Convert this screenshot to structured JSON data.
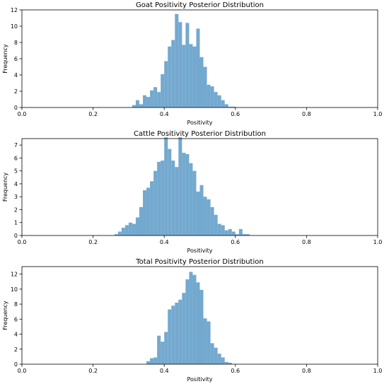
{
  "bar_color": "#74a9cf",
  "chart_data": [
    {
      "type": "bar",
      "title": "Goat Positivity Posterior Distribution",
      "xlabel": "Positivity",
      "ylabel": "Frequency",
      "xlim": [
        0.0,
        1.0
      ],
      "ylim": [
        0,
        12
      ],
      "xticks": [
        "0.0",
        "0.2",
        "0.4",
        "0.6",
        "0.8",
        "1.0"
      ],
      "yticks": [
        "0",
        "2",
        "4",
        "6",
        "8",
        "10",
        "12"
      ],
      "bin_width": 0.01,
      "bins": [
        {
          "x": 0.315,
          "y": 0.3
        },
        {
          "x": 0.325,
          "y": 0.9
        },
        {
          "x": 0.335,
          "y": 0.4
        },
        {
          "x": 0.345,
          "y": 1.5
        },
        {
          "x": 0.355,
          "y": 1.3
        },
        {
          "x": 0.365,
          "y": 2.1
        },
        {
          "x": 0.375,
          "y": 2.5
        },
        {
          "x": 0.385,
          "y": 1.9
        },
        {
          "x": 0.395,
          "y": 4.1
        },
        {
          "x": 0.405,
          "y": 5.7
        },
        {
          "x": 0.415,
          "y": 7.5
        },
        {
          "x": 0.425,
          "y": 8.3
        },
        {
          "x": 0.435,
          "y": 11.5
        },
        {
          "x": 0.445,
          "y": 10.5
        },
        {
          "x": 0.455,
          "y": 7.7
        },
        {
          "x": 0.465,
          "y": 10.4
        },
        {
          "x": 0.475,
          "y": 7.8
        },
        {
          "x": 0.485,
          "y": 7.5
        },
        {
          "x": 0.495,
          "y": 9.7
        },
        {
          "x": 0.505,
          "y": 6.2
        },
        {
          "x": 0.515,
          "y": 5.0
        },
        {
          "x": 0.525,
          "y": 2.8
        },
        {
          "x": 0.535,
          "y": 2.6
        },
        {
          "x": 0.545,
          "y": 1.9
        },
        {
          "x": 0.555,
          "y": 1.5
        },
        {
          "x": 0.565,
          "y": 0.9
        },
        {
          "x": 0.575,
          "y": 0.4
        },
        {
          "x": 0.585,
          "y": 0.1
        },
        {
          "x": 0.595,
          "y": 0.1
        }
      ]
    },
    {
      "type": "bar",
      "title": "Cattle Positivity Posterior Distribution",
      "xlabel": "Positivity",
      "ylabel": "Frequency",
      "xlim": [
        0.0,
        1.0
      ],
      "ylim": [
        0,
        7.5
      ],
      "xticks": [
        "0.0",
        "0.2",
        "0.4",
        "0.6",
        "0.8",
        "1.0"
      ],
      "yticks": [
        "0",
        "1",
        "2",
        "3",
        "4",
        "5",
        "6",
        "7"
      ],
      "bin_width": 0.01,
      "bins": [
        {
          "x": 0.265,
          "y": 0.1
        },
        {
          "x": 0.275,
          "y": 0.3
        },
        {
          "x": 0.285,
          "y": 0.6
        },
        {
          "x": 0.295,
          "y": 0.8
        },
        {
          "x": 0.305,
          "y": 1.0
        },
        {
          "x": 0.315,
          "y": 0.9
        },
        {
          "x": 0.325,
          "y": 1.4
        },
        {
          "x": 0.335,
          "y": 2.2
        },
        {
          "x": 0.345,
          "y": 3.5
        },
        {
          "x": 0.355,
          "y": 3.7
        },
        {
          "x": 0.365,
          "y": 4.2
        },
        {
          "x": 0.375,
          "y": 5.0
        },
        {
          "x": 0.385,
          "y": 5.7
        },
        {
          "x": 0.395,
          "y": 5.8
        },
        {
          "x": 0.405,
          "y": 7.6
        },
        {
          "x": 0.415,
          "y": 6.7
        },
        {
          "x": 0.425,
          "y": 5.8
        },
        {
          "x": 0.435,
          "y": 5.3
        },
        {
          "x": 0.445,
          "y": 7.6
        },
        {
          "x": 0.455,
          "y": 6.4
        },
        {
          "x": 0.465,
          "y": 6.3
        },
        {
          "x": 0.475,
          "y": 5.6
        },
        {
          "x": 0.485,
          "y": 5.0
        },
        {
          "x": 0.495,
          "y": 3.4
        },
        {
          "x": 0.505,
          "y": 3.9
        },
        {
          "x": 0.515,
          "y": 3.0
        },
        {
          "x": 0.525,
          "y": 2.8
        },
        {
          "x": 0.535,
          "y": 2.2
        },
        {
          "x": 0.545,
          "y": 1.6
        },
        {
          "x": 0.555,
          "y": 0.9
        },
        {
          "x": 0.565,
          "y": 0.8
        },
        {
          "x": 0.575,
          "y": 0.4
        },
        {
          "x": 0.585,
          "y": 0.5
        },
        {
          "x": 0.595,
          "y": 0.3
        },
        {
          "x": 0.605,
          "y": 0.1
        },
        {
          "x": 0.615,
          "y": 0.5
        },
        {
          "x": 0.625,
          "y": 0.1
        },
        {
          "x": 0.635,
          "y": 0.1
        }
      ]
    },
    {
      "type": "bar",
      "title": "Total Positivity Posterior Distribution",
      "xlabel": "Positivity",
      "ylabel": "Frequency",
      "xlim": [
        0.0,
        1.0
      ],
      "ylim": [
        0,
        13
      ],
      "xticks": [
        "0.0",
        "0.2",
        "0.4",
        "0.6",
        "0.8",
        "1.0"
      ],
      "yticks": [
        "0",
        "2",
        "4",
        "6",
        "8",
        "10",
        "12"
      ],
      "bin_width": 0.01,
      "bins": [
        {
          "x": 0.355,
          "y": 0.4
        },
        {
          "x": 0.365,
          "y": 0.8
        },
        {
          "x": 0.375,
          "y": 0.9
        },
        {
          "x": 0.385,
          "y": 3.8
        },
        {
          "x": 0.395,
          "y": 3.0
        },
        {
          "x": 0.405,
          "y": 4.3
        },
        {
          "x": 0.415,
          "y": 7.3
        },
        {
          "x": 0.425,
          "y": 7.8
        },
        {
          "x": 0.435,
          "y": 8.2
        },
        {
          "x": 0.445,
          "y": 8.6
        },
        {
          "x": 0.455,
          "y": 9.5
        },
        {
          "x": 0.465,
          "y": 11.3
        },
        {
          "x": 0.475,
          "y": 12.3
        },
        {
          "x": 0.485,
          "y": 11.9
        },
        {
          "x": 0.495,
          "y": 10.9
        },
        {
          "x": 0.505,
          "y": 9.9
        },
        {
          "x": 0.515,
          "y": 6.1
        },
        {
          "x": 0.525,
          "y": 5.7
        },
        {
          "x": 0.535,
          "y": 2.8
        },
        {
          "x": 0.545,
          "y": 2.2
        },
        {
          "x": 0.555,
          "y": 1.4
        },
        {
          "x": 0.565,
          "y": 0.9
        },
        {
          "x": 0.575,
          "y": 0.3
        },
        {
          "x": 0.585,
          "y": 0.2
        }
      ]
    }
  ]
}
